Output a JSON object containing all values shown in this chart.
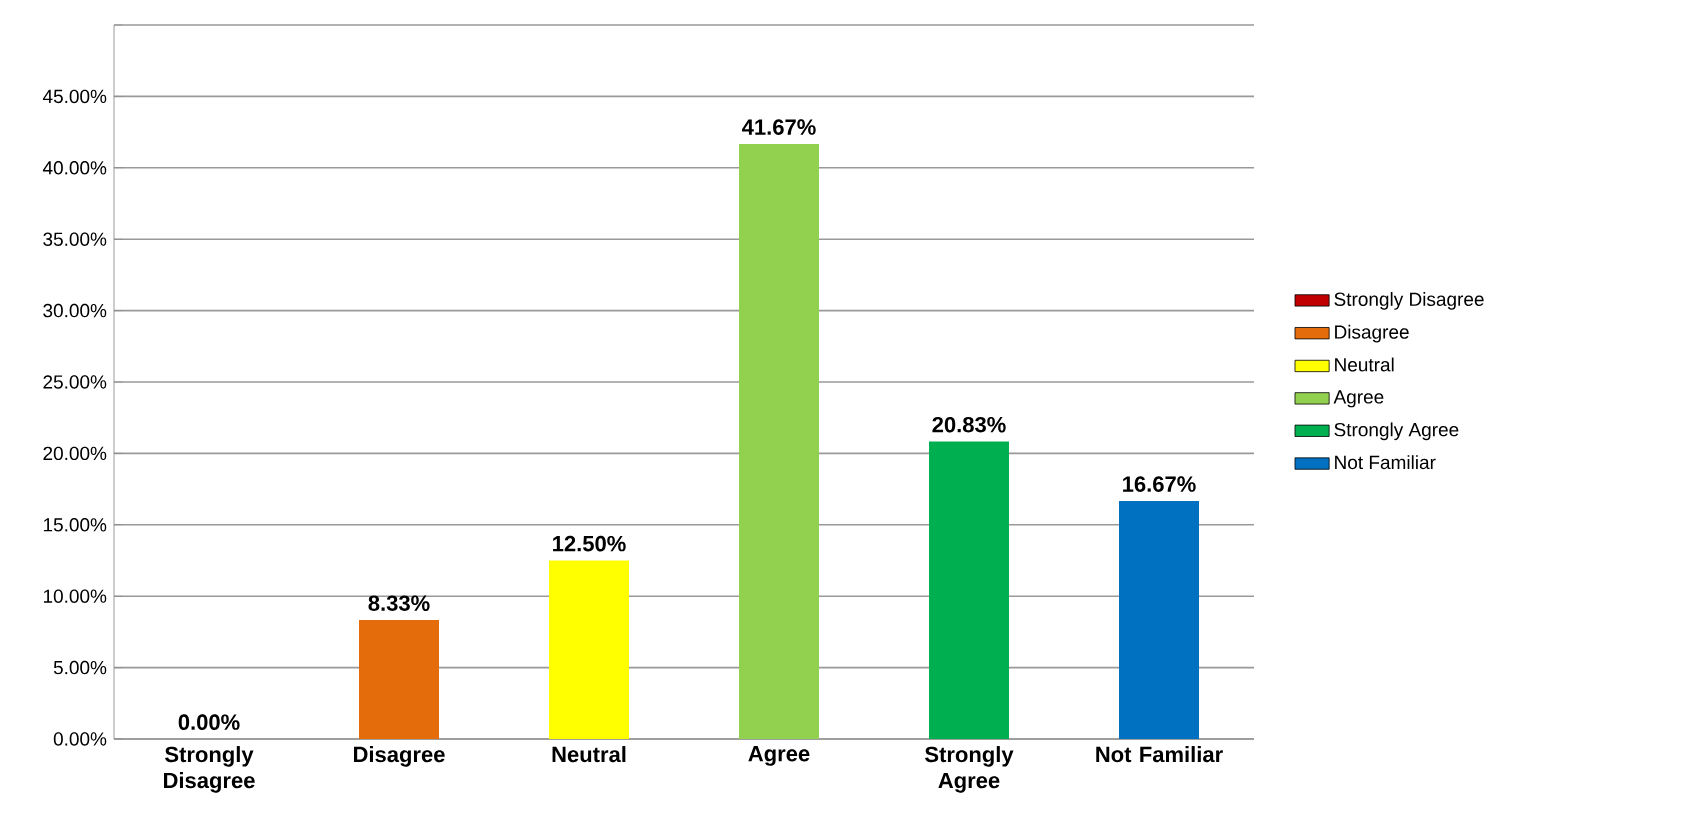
{
  "chart_data": {
    "type": "bar",
    "categories": [
      "Strongly Disagree",
      "Disagree",
      "Neutral",
      "Agree",
      "Strongly Agree",
      "Not Familiar"
    ],
    "series": [
      {
        "name": "Strongly Disagree",
        "color": "#c00000",
        "values": [
          0,
          null,
          null,
          null,
          null,
          null
        ],
        "value_labels": [
          "0.00%",
          null,
          null,
          null,
          null,
          null
        ]
      },
      {
        "name": "Disagree",
        "color": "#e46c0a",
        "values": [
          null,
          8.33,
          null,
          null,
          null,
          null
        ],
        "value_labels": [
          null,
          "8.33%",
          null,
          null,
          null,
          null
        ]
      },
      {
        "name": "Neutral",
        "color": "#ffff00",
        "values": [
          null,
          null,
          12.5,
          null,
          null,
          null
        ],
        "value_labels": [
          null,
          null,
          "12.50%",
          null,
          null,
          null
        ]
      },
      {
        "name": "Agree",
        "color": "#92d050",
        "values": [
          null,
          null,
          null,
          41.67,
          null,
          null
        ],
        "value_labels": [
          null,
          null,
          null,
          "41.67%",
          null,
          null
        ]
      },
      {
        "name": "Strongly Agree",
        "color": "#00b050",
        "values": [
          null,
          null,
          null,
          null,
          20.83,
          null
        ],
        "value_labels": [
          null,
          null,
          null,
          null,
          "20.83%",
          null
        ]
      },
      {
        "name": "Not Familiar",
        "color": "#0070c0",
        "values": [
          null,
          null,
          null,
          null,
          null,
          16.67
        ],
        "value_labels": [
          null,
          null,
          null,
          null,
          null,
          "16.67%"
        ]
      }
    ],
    "ylim": [
      0,
      50
    ],
    "yticks": [
      {
        "value": 0,
        "label": "0.00%"
      },
      {
        "value": 5,
        "label": "5.00%"
      },
      {
        "value": 10,
        "label": "10.00%"
      },
      {
        "value": 15,
        "label": "15.00%"
      },
      {
        "value": 20,
        "label": "20.00%"
      },
      {
        "value": 25,
        "label": "25.00%"
      },
      {
        "value": 30,
        "label": "30.00%"
      },
      {
        "value": 35,
        "label": "35.00%"
      },
      {
        "value": 40,
        "label": "40.00%"
      },
      {
        "value": 45,
        "label": "45.00%"
      },
      {
        "value": 50,
        "label": null
      }
    ],
    "grid": "y",
    "legend": "right"
  }
}
